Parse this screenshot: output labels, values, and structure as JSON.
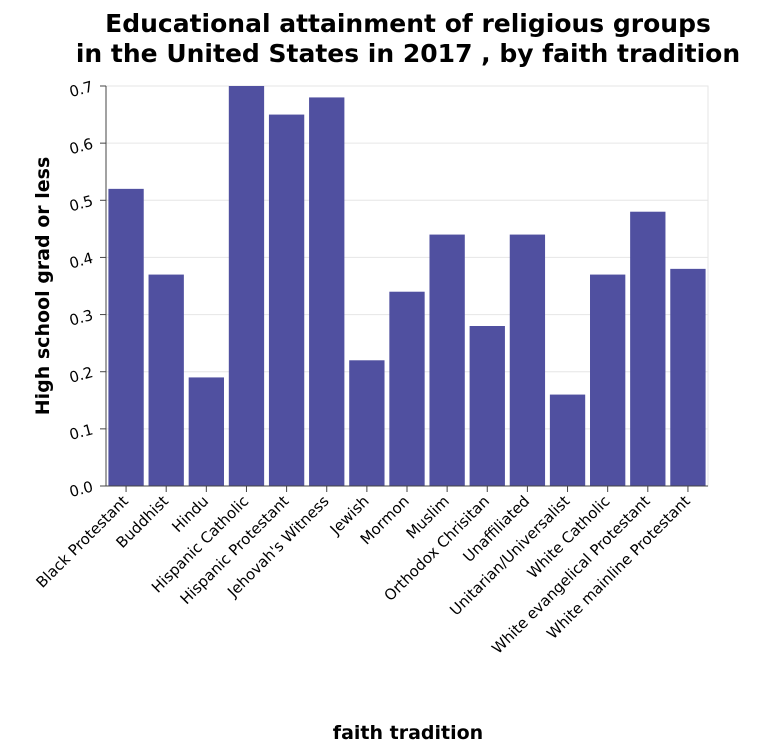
{
  "chart_data": {
    "type": "bar",
    "title_lines": [
      "Educational attainment of religious groups",
      "in the United States in 2017 , by faith tradition"
    ],
    "xlabel": "faith tradition",
    "ylabel": "High school grad or less",
    "ylim": [
      0,
      0.7
    ],
    "yticks": [
      "0.0",
      "0.1",
      "0.2",
      "0.3",
      "0.4",
      "0.5",
      "0.6",
      "0.7"
    ],
    "grid": true,
    "bar_color": "#5050a0",
    "categories": [
      "Black Protestant",
      "Buddhist",
      "Hindu",
      "Hispanic Catholic",
      "Hispanic Protestant",
      "Jehovah's Witness",
      "Jewish",
      "Mormon",
      "Muslim",
      "Orthodox Chrisitan",
      "Unaffiliated",
      "Unitarian/Universalist",
      "White Catholic",
      "White evangelical Protestant",
      "White mainline Protestant"
    ],
    "values": [
      0.52,
      0.37,
      0.19,
      0.7,
      0.65,
      0.68,
      0.22,
      0.34,
      0.44,
      0.28,
      0.44,
      0.16,
      0.37,
      0.48,
      0.38
    ]
  }
}
